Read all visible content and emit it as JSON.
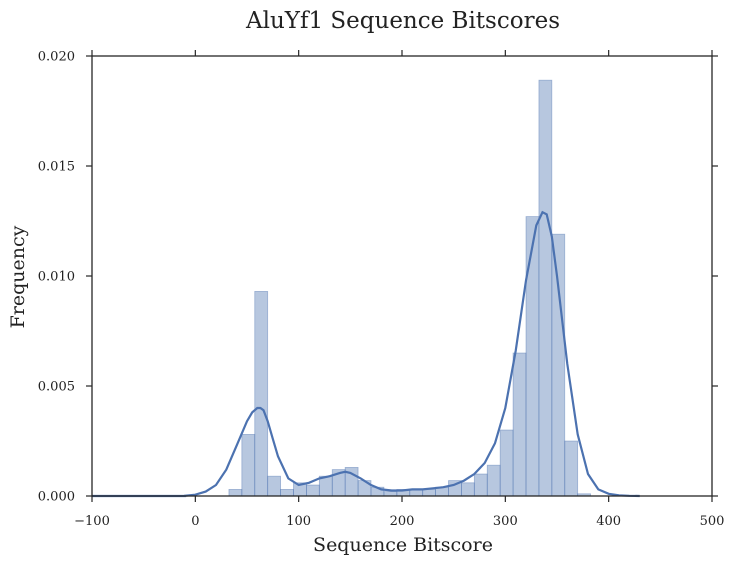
{
  "chart_data": {
    "type": "bar",
    "title": "AluYf1 Sequence Bitscores",
    "xlabel": "Sequence Bitscore",
    "ylabel": "Frequency",
    "xlim": [
      -100,
      500
    ],
    "ylim": [
      0,
      0.02
    ],
    "x_ticks": [
      "−100",
      "0",
      "100",
      "200",
      "300",
      "400",
      "500"
    ],
    "x_tick_values": [
      -100,
      0,
      100,
      200,
      300,
      400,
      500
    ],
    "y_ticks": [
      "0.000",
      "0.005",
      "0.010",
      "0.015",
      "0.020"
    ],
    "y_tick_values": [
      0,
      0.005,
      0.01,
      0.015,
      0.02
    ],
    "grid": false,
    "bar_color": "#4c72b0",
    "line_color": "#4c72b0",
    "bin_width": 12.5,
    "bins": [
      {
        "x0": 32.5,
        "value": 0.0003
      },
      {
        "x0": 45,
        "value": 0.0028
      },
      {
        "x0": 57.5,
        "value": 0.0093
      },
      {
        "x0": 70,
        "value": 0.0009
      },
      {
        "x0": 82.5,
        "value": 0.0003
      },
      {
        "x0": 95,
        "value": 0.0006
      },
      {
        "x0": 107.5,
        "value": 0.0005
      },
      {
        "x0": 120,
        "value": 0.0009
      },
      {
        "x0": 132.5,
        "value": 0.0012
      },
      {
        "x0": 145,
        "value": 0.0013
      },
      {
        "x0": 157.5,
        "value": 0.0007
      },
      {
        "x0": 170,
        "value": 0.0004
      },
      {
        "x0": 182.5,
        "value": 0.0002
      },
      {
        "x0": 195,
        "value": 0.0003
      },
      {
        "x0": 207.5,
        "value": 0.0003
      },
      {
        "x0": 220,
        "value": 0.0003
      },
      {
        "x0": 232.5,
        "value": 0.0004
      },
      {
        "x0": 245,
        "value": 0.0007
      },
      {
        "x0": 257.5,
        "value": 0.0006
      },
      {
        "x0": 270,
        "value": 0.001
      },
      {
        "x0": 282.5,
        "value": 0.0014
      },
      {
        "x0": 295,
        "value": 0.003
      },
      {
        "x0": 307.5,
        "value": 0.0065
      },
      {
        "x0": 320,
        "value": 0.0127
      },
      {
        "x0": 332.5,
        "value": 0.0189
      },
      {
        "x0": 345,
        "value": 0.0119
      },
      {
        "x0": 357.5,
        "value": 0.0025
      },
      {
        "x0": 370,
        "value": 0.0001
      }
    ],
    "kde": {
      "x": [
        -10,
        0,
        10,
        20,
        30,
        40,
        50,
        55,
        60,
        63,
        66,
        70,
        75,
        80,
        90,
        100,
        110,
        120,
        130,
        140,
        145,
        150,
        160,
        170,
        180,
        190,
        200,
        210,
        220,
        230,
        240,
        250,
        260,
        270,
        280,
        290,
        300,
        310,
        320,
        330,
        336,
        340,
        345,
        350,
        360,
        370,
        380,
        390,
        400,
        410,
        420,
        430
      ],
      "y": [
        1e-05,
        6e-05,
        0.0002,
        0.0005,
        0.0012,
        0.0023,
        0.0034,
        0.0038,
        0.004,
        0.004,
        0.0039,
        0.0034,
        0.0026,
        0.0018,
        0.0008,
        0.0005,
        0.0006,
        0.0008,
        0.0009,
        0.00105,
        0.0011,
        0.00105,
        0.0008,
        0.0005,
        0.0003,
        0.00025,
        0.00025,
        0.0003,
        0.0003,
        0.00035,
        0.0004,
        0.0005,
        0.0007,
        0.001,
        0.0015,
        0.0024,
        0.004,
        0.0066,
        0.0098,
        0.0123,
        0.0129,
        0.0128,
        0.0118,
        0.01,
        0.006,
        0.0028,
        0.001,
        0.0003,
        0.0001,
        3e-05,
        1e-05,
        0.0
      ]
    }
  }
}
